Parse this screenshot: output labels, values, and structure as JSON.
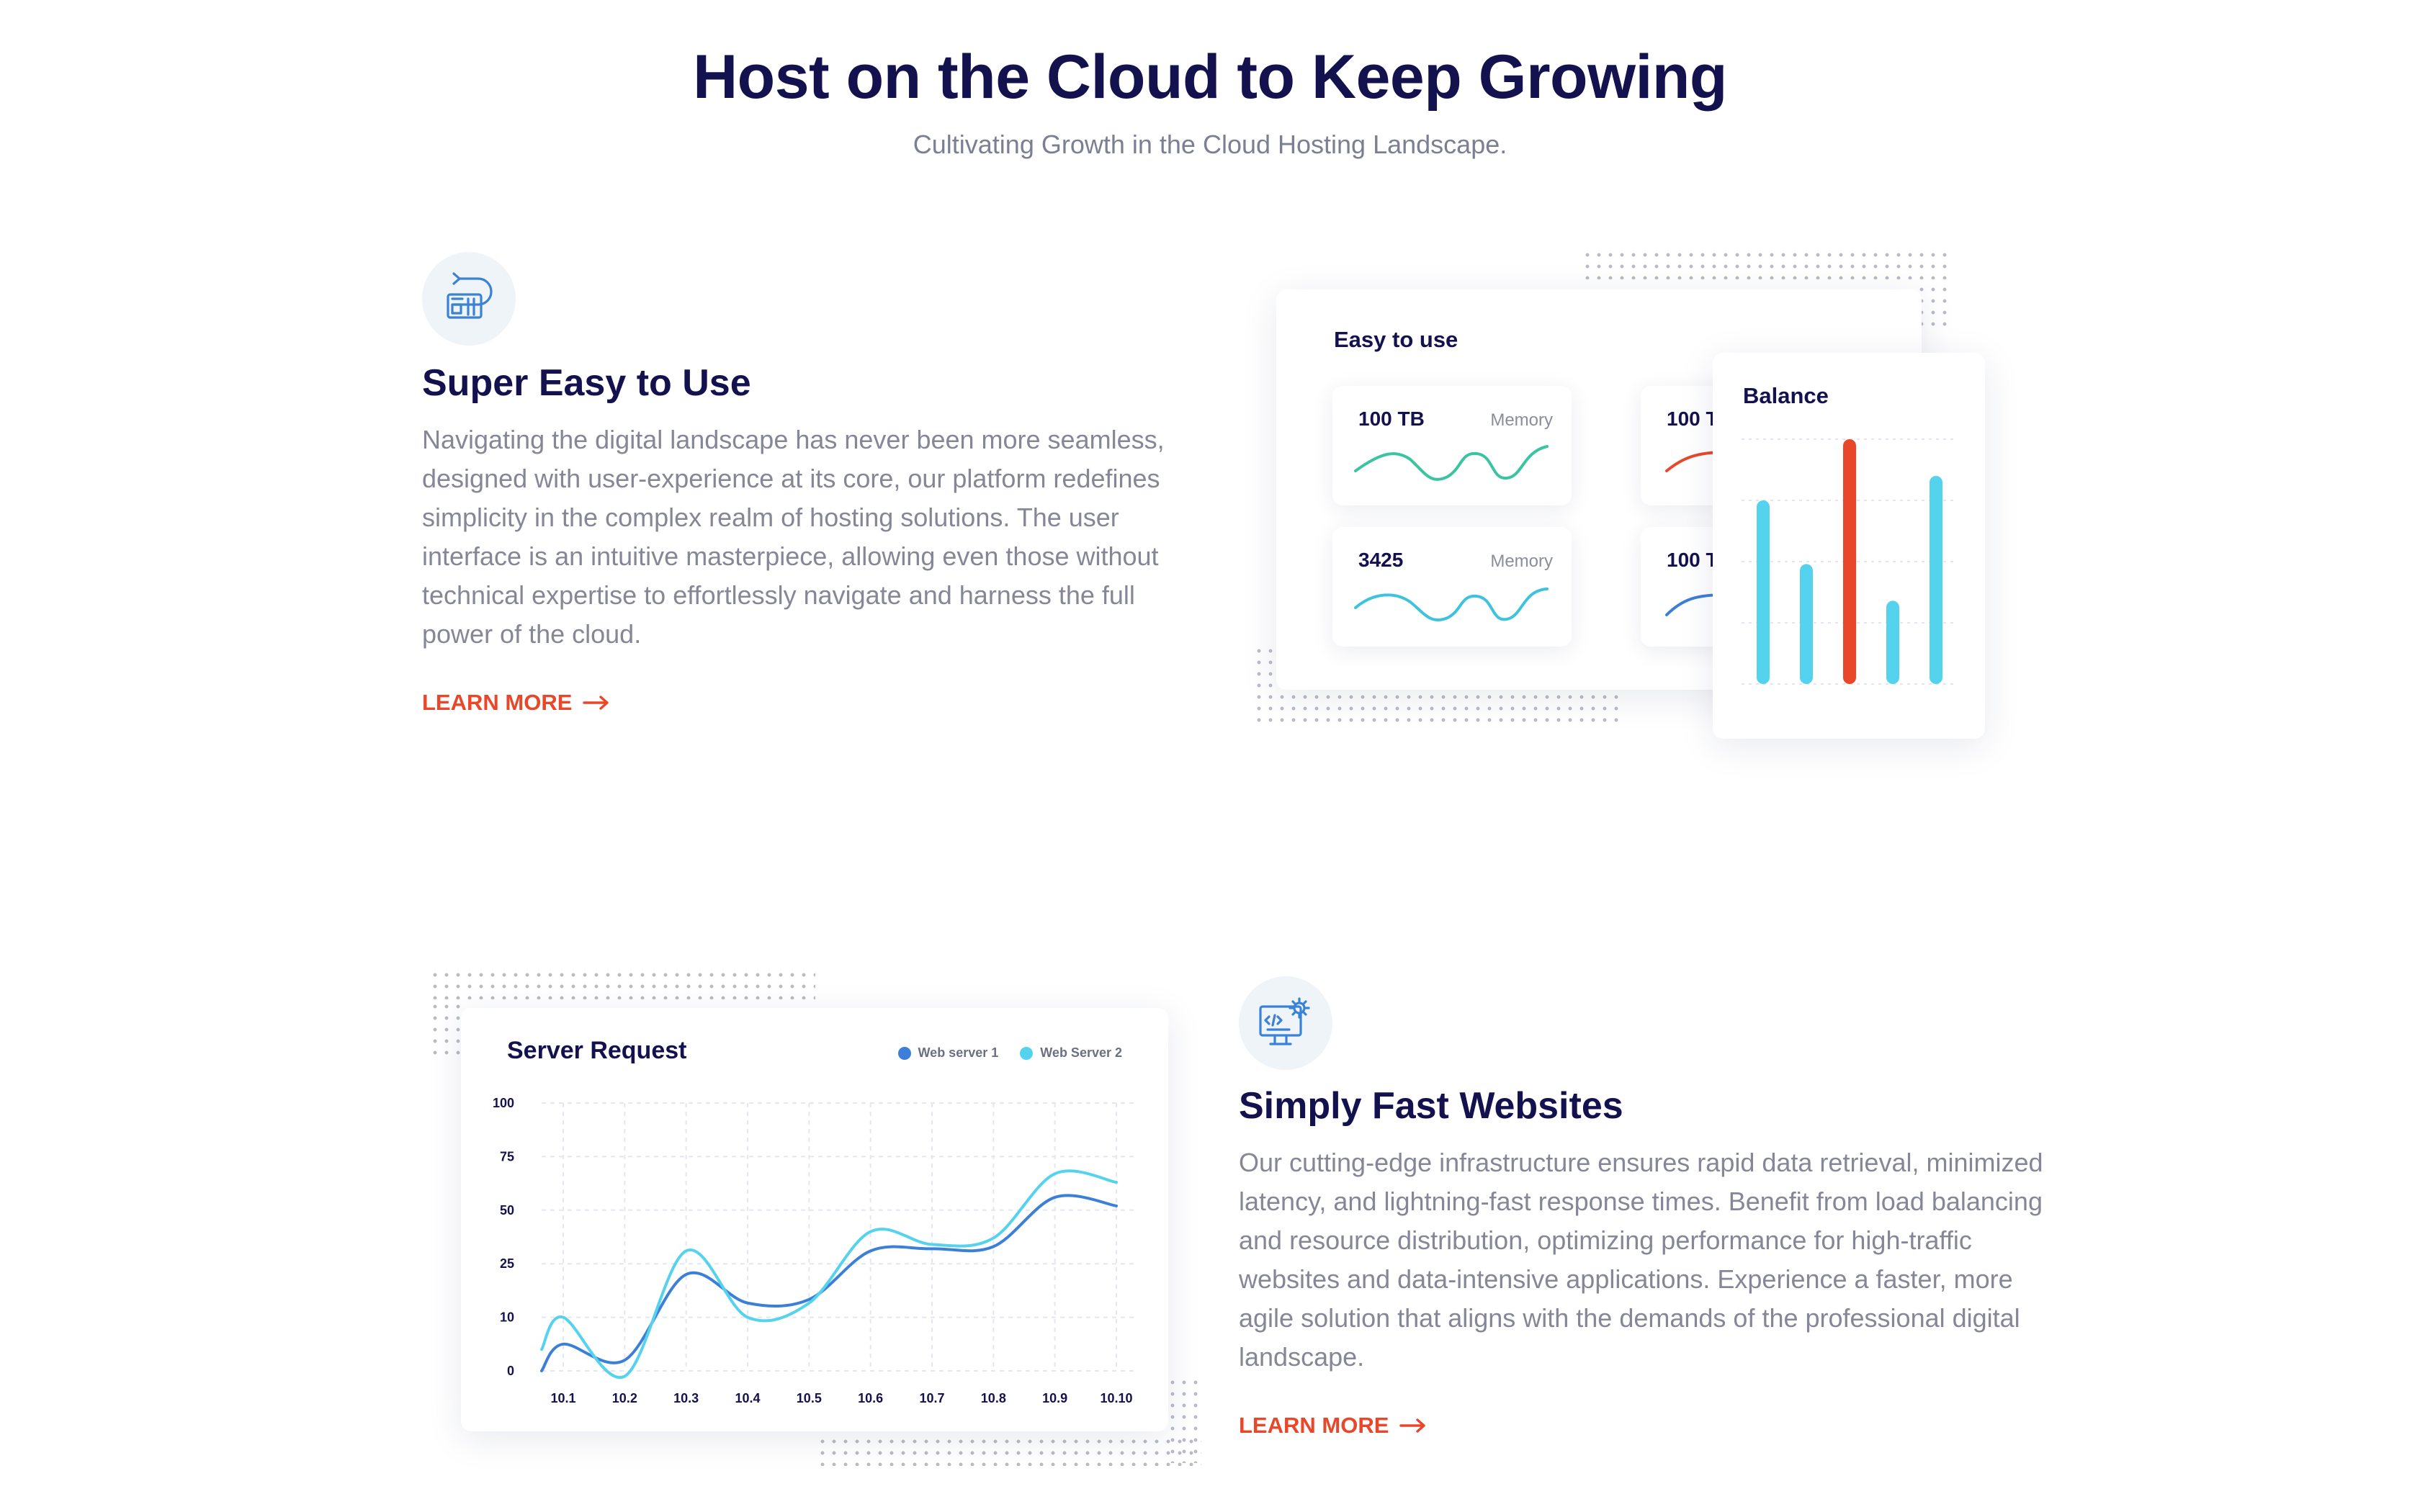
{
  "hero": {
    "title": "Host on the Cloud to Keep Growing",
    "subtitle": "Cultivating Growth in the Cloud Hosting Landscape."
  },
  "feature1": {
    "icon": "cloud-server-icon",
    "title": "Super Easy to Use",
    "text": "Navigating the digital landscape has never been more seamless, designed with user-experience at its core, our platform redefines simplicity in the complex realm of hosting solutions. The user interface is an intuitive masterpiece, allowing even those without technical expertise to effortlessly navigate and harness the full power of the cloud.",
    "cta": "LEARN MORE"
  },
  "feature2": {
    "icon": "monitor-code-gear-icon",
    "title": "Simply Fast Websites",
    "text": "Our cutting-edge infrastructure ensures rapid data retrieval, minimized latency, and lightning-fast response times. Benefit from load balancing and resource distribution, optimizing performance for high-traffic websites and data-intensive applications. Experience a faster, more agile solution that aligns with the demands of the professional digital landscape.",
    "cta": "LEARN MORE"
  },
  "easy_card": {
    "title": "Easy to use",
    "tiles": [
      {
        "value": "100 TB",
        "label": "Memory",
        "color": "#3ac4a2"
      },
      {
        "value": "100 T",
        "label": "",
        "color": "#e9472a"
      },
      {
        "value": "3425",
        "label": "Memory",
        "color": "#3ec3dc"
      },
      {
        "value": "100 T",
        "label": "",
        "color": "#3b7fd8"
      }
    ]
  },
  "balance_card": {
    "title": "Balance"
  },
  "colors": {
    "accent": "#e9472a",
    "heading": "#14114f",
    "body_text": "#858797",
    "cyan": "#55d2ee",
    "blue": "#3b7fd8"
  },
  "chart_data": [
    {
      "type": "bar",
      "categories": [
        "",
        "",
        "",
        "",
        ""
      ],
      "values": [
        75,
        49,
        100,
        34,
        85
      ],
      "ylim": [
        0,
        100
      ],
      "highlight_index": 2,
      "grid": true
    },
    {
      "type": "line",
      "title": "Server Request",
      "x": [
        "10.1",
        "10.2",
        "10.3",
        "10.4",
        "10.5",
        "10.6",
        "10.7",
        "10.8",
        "10.9",
        "10.10"
      ],
      "y_ticks": [
        "100",
        "75",
        "50",
        "25",
        "10",
        "0"
      ],
      "series": [
        {
          "name": "Web server 1",
          "color": "#3b7fd8",
          "values": [
            5,
            2,
            22,
            14,
            15,
            31,
            32,
            33,
            56,
            52
          ]
        },
        {
          "name": "Web Server 2",
          "color": "#55d2ee",
          "values": [
            10,
            -1,
            31,
            10,
            14,
            40,
            34,
            37,
            67,
            63
          ]
        }
      ],
      "legend": "top-right",
      "grid": true
    }
  ]
}
